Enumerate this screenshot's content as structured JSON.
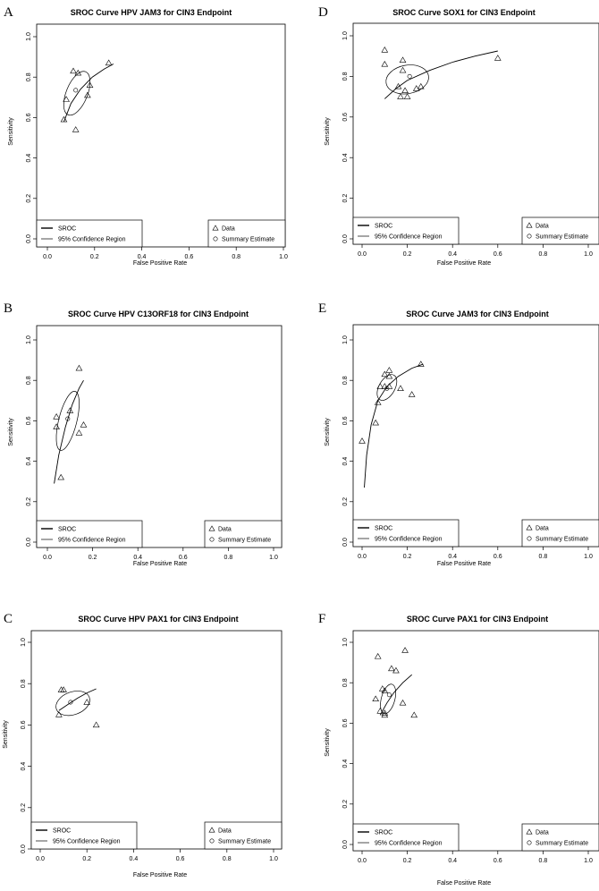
{
  "chart_data": [
    {
      "panel": "A",
      "type": "scatter",
      "title": "SROC Curve HPV JAM3 for CIN3 Endpoint",
      "xlabel": "False Positive Rate",
      "ylabel": "Sensitivity",
      "xlim": [
        0,
        1
      ],
      "ylim": [
        0,
        1
      ],
      "xticks": [
        "0.0",
        "0.2",
        "0.4",
        "0.6",
        "0.8",
        "1.0"
      ],
      "yticks": [
        "0.0",
        "0.2",
        "0.4",
        "0.6",
        "0.8",
        "1.0"
      ],
      "legend_lines": [
        "SROC",
        "95% Confidence Region"
      ],
      "legend_points": [
        "Data",
        "Summary Estimate"
      ],
      "points": [
        [
          0.11,
          0.83
        ],
        [
          0.13,
          0.82
        ],
        [
          0.26,
          0.87
        ],
        [
          0.18,
          0.76
        ],
        [
          0.17,
          0.71
        ],
        [
          0.08,
          0.69
        ],
        [
          0.07,
          0.59
        ],
        [
          0.12,
          0.54
        ]
      ],
      "summary": [
        0.12,
        0.735
      ],
      "curve": [
        [
          0.07,
          0.58
        ],
        [
          0.1,
          0.67
        ],
        [
          0.14,
          0.74
        ],
        [
          0.19,
          0.8
        ],
        [
          0.24,
          0.84
        ],
        [
          0.28,
          0.865
        ]
      ],
      "ellipse": {
        "cx": 0.125,
        "cy": 0.72,
        "rx": 0.045,
        "ry": 0.115,
        "angle": 22
      }
    },
    {
      "panel": "D",
      "type": "scatter",
      "title": "SROC Curve SOX1 for CIN3 Endpoint",
      "xlabel": "False Positive Rate",
      "ylabel": "Sensitivity",
      "xlim": [
        0,
        1
      ],
      "ylim": [
        0,
        1
      ],
      "xticks": [
        "0.0",
        "0.2",
        "0.4",
        "0.6",
        "0.8",
        "1.0"
      ],
      "yticks": [
        "0.0",
        "0.2",
        "0.4",
        "0.6",
        "0.8",
        "1.0"
      ],
      "legend_lines": [
        "SROC",
        "95% Confidence Region"
      ],
      "legend_points": [
        "Data",
        "Summary Estimate"
      ],
      "points": [
        [
          0.1,
          0.93
        ],
        [
          0.1,
          0.86
        ],
        [
          0.18,
          0.88
        ],
        [
          0.18,
          0.83
        ],
        [
          0.6,
          0.89
        ],
        [
          0.16,
          0.75
        ],
        [
          0.19,
          0.73
        ],
        [
          0.24,
          0.74
        ],
        [
          0.26,
          0.75
        ],
        [
          0.17,
          0.7
        ],
        [
          0.2,
          0.7
        ]
      ],
      "summary": [
        0.21,
        0.8
      ],
      "curve": [
        [
          0.1,
          0.69
        ],
        [
          0.15,
          0.74
        ],
        [
          0.2,
          0.78
        ],
        [
          0.3,
          0.83
        ],
        [
          0.4,
          0.87
        ],
        [
          0.5,
          0.9
        ],
        [
          0.6,
          0.925
        ]
      ],
      "ellipse": {
        "cx": 0.2,
        "cy": 0.785,
        "rx": 0.095,
        "ry": 0.07,
        "angle": -10
      }
    },
    {
      "panel": "B",
      "type": "scatter",
      "title": "SROC Curve HPV C13ORF18 for CIN3 Endpoint",
      "xlabel": "False Positive Rate",
      "ylabel": "Sensitivity",
      "xlim": [
        0,
        1
      ],
      "ylim": [
        0,
        1
      ],
      "xticks": [
        "0.0",
        "0.2",
        "0.4",
        "0.6",
        "0.8",
        "1.0"
      ],
      "yticks": [
        "0.0",
        "0.2",
        "0.4",
        "0.6",
        "0.8",
        "1.0"
      ],
      "legend_lines": [
        "SROC",
        "95% Confidence Region"
      ],
      "legend_points": [
        "Data",
        "Summary Estimate"
      ],
      "points": [
        [
          0.14,
          0.86
        ],
        [
          0.1,
          0.65
        ],
        [
          0.04,
          0.62
        ],
        [
          0.04,
          0.57
        ],
        [
          0.16,
          0.58
        ],
        [
          0.14,
          0.54
        ],
        [
          0.06,
          0.32
        ]
      ],
      "summary": [
        0.09,
        0.61
      ],
      "curve": [
        [
          0.03,
          0.29
        ],
        [
          0.05,
          0.43
        ],
        [
          0.08,
          0.57
        ],
        [
          0.11,
          0.68
        ],
        [
          0.14,
          0.76
        ],
        [
          0.16,
          0.8
        ]
      ],
      "ellipse": {
        "cx": 0.09,
        "cy": 0.6,
        "rx": 0.04,
        "ry": 0.15,
        "angle": 14
      }
    },
    {
      "panel": "E",
      "type": "scatter",
      "title": "SROC Curve JAM3 for CIN3 Endpoint",
      "xlabel": "False Positive Rate",
      "ylabel": "Sensitivity",
      "xlim": [
        0,
        1
      ],
      "ylim": [
        0,
        1
      ],
      "xticks": [
        "0.0",
        "0.2",
        "0.4",
        "0.6",
        "0.8",
        "1.0"
      ],
      "yticks": [
        "0.0",
        "0.2",
        "0.4",
        "0.6",
        "0.8",
        "1.0"
      ],
      "legend_lines": [
        "SROC",
        "95% Confidence Region"
      ],
      "legend_points": [
        "Data",
        "Summary Estimate"
      ],
      "points": [
        [
          0.26,
          0.88
        ],
        [
          0.12,
          0.85
        ],
        [
          0.1,
          0.83
        ],
        [
          0.12,
          0.82
        ],
        [
          0.08,
          0.77
        ],
        [
          0.1,
          0.77
        ],
        [
          0.12,
          0.77
        ],
        [
          0.17,
          0.76
        ],
        [
          0.22,
          0.73
        ],
        [
          0.07,
          0.69
        ],
        [
          0.06,
          0.59
        ],
        [
          0.0,
          0.5
        ]
      ],
      "summary": [
        0.11,
        0.76
      ],
      "curve": [
        [
          0.01,
          0.27
        ],
        [
          0.02,
          0.43
        ],
        [
          0.04,
          0.58
        ],
        [
          0.07,
          0.7
        ],
        [
          0.11,
          0.77
        ],
        [
          0.16,
          0.82
        ],
        [
          0.22,
          0.86
        ],
        [
          0.27,
          0.88
        ]
      ],
      "ellipse": {
        "cx": 0.11,
        "cy": 0.765,
        "rx": 0.035,
        "ry": 0.07,
        "angle": 30
      }
    },
    {
      "panel": "C",
      "type": "scatter",
      "title": "SROC Curve HPV PAX1 for CIN3 Endpoint",
      "xlabel": "False Positive Rate",
      "ylabel": "Sensitivity",
      "xlim": [
        0,
        1
      ],
      "ylim": [
        0,
        1
      ],
      "xticks": [
        "0.0",
        "0.2",
        "0.4",
        "0.6",
        "0.8",
        "1.0"
      ],
      "yticks": [
        "0.0",
        "0.2",
        "0.4",
        "0.6",
        "0.8",
        "1.0"
      ],
      "legend_lines": [
        "SROC",
        "95% Confidence Region"
      ],
      "legend_points": [
        "Data",
        "Summary Estimate"
      ],
      "points": [
        [
          0.09,
          0.77
        ],
        [
          0.1,
          0.77
        ],
        [
          0.2,
          0.71
        ],
        [
          0.08,
          0.65
        ],
        [
          0.24,
          0.6
        ]
      ],
      "summary": [
        0.13,
        0.71
      ],
      "curve": [
        [
          0.08,
          0.67
        ],
        [
          0.12,
          0.7
        ],
        [
          0.16,
          0.73
        ],
        [
          0.2,
          0.755
        ],
        [
          0.24,
          0.775
        ]
      ],
      "ellipse": {
        "cx": 0.14,
        "cy": 0.705,
        "rx": 0.075,
        "ry": 0.055,
        "angle": -20
      }
    },
    {
      "panel": "F",
      "type": "scatter",
      "title": "SROC Curve PAX1 for CIN3 Endpoint",
      "xlabel": "False Positive Rate",
      "ylabel": "Sensitivity",
      "xlim": [
        0,
        1
      ],
      "ylim": [
        0,
        1
      ],
      "xticks": [
        "0.0",
        "0.2",
        "0.4",
        "0.6",
        "0.8",
        "1.0"
      ],
      "yticks": [
        "0.0",
        "0.2",
        "0.4",
        "0.6",
        "0.8",
        "1.0"
      ],
      "legend_lines": [
        "SROC",
        "95% Confidence Region"
      ],
      "legend_points": [
        "Data",
        "Summary Estimate"
      ],
      "points": [
        [
          0.19,
          0.96
        ],
        [
          0.07,
          0.93
        ],
        [
          0.13,
          0.87
        ],
        [
          0.15,
          0.86
        ],
        [
          0.09,
          0.77
        ],
        [
          0.1,
          0.76
        ],
        [
          0.06,
          0.72
        ],
        [
          0.18,
          0.7
        ],
        [
          0.23,
          0.64
        ],
        [
          0.08,
          0.66
        ],
        [
          0.1,
          0.65
        ],
        [
          0.1,
          0.64
        ]
      ],
      "summary": [
        0.12,
        0.74
      ],
      "curve": [
        [
          0.08,
          0.64
        ],
        [
          0.11,
          0.7
        ],
        [
          0.14,
          0.75
        ],
        [
          0.18,
          0.8
        ],
        [
          0.22,
          0.84
        ]
      ],
      "ellipse": {
        "cx": 0.115,
        "cy": 0.72,
        "rx": 0.03,
        "ry": 0.075,
        "angle": 15
      }
    }
  ]
}
